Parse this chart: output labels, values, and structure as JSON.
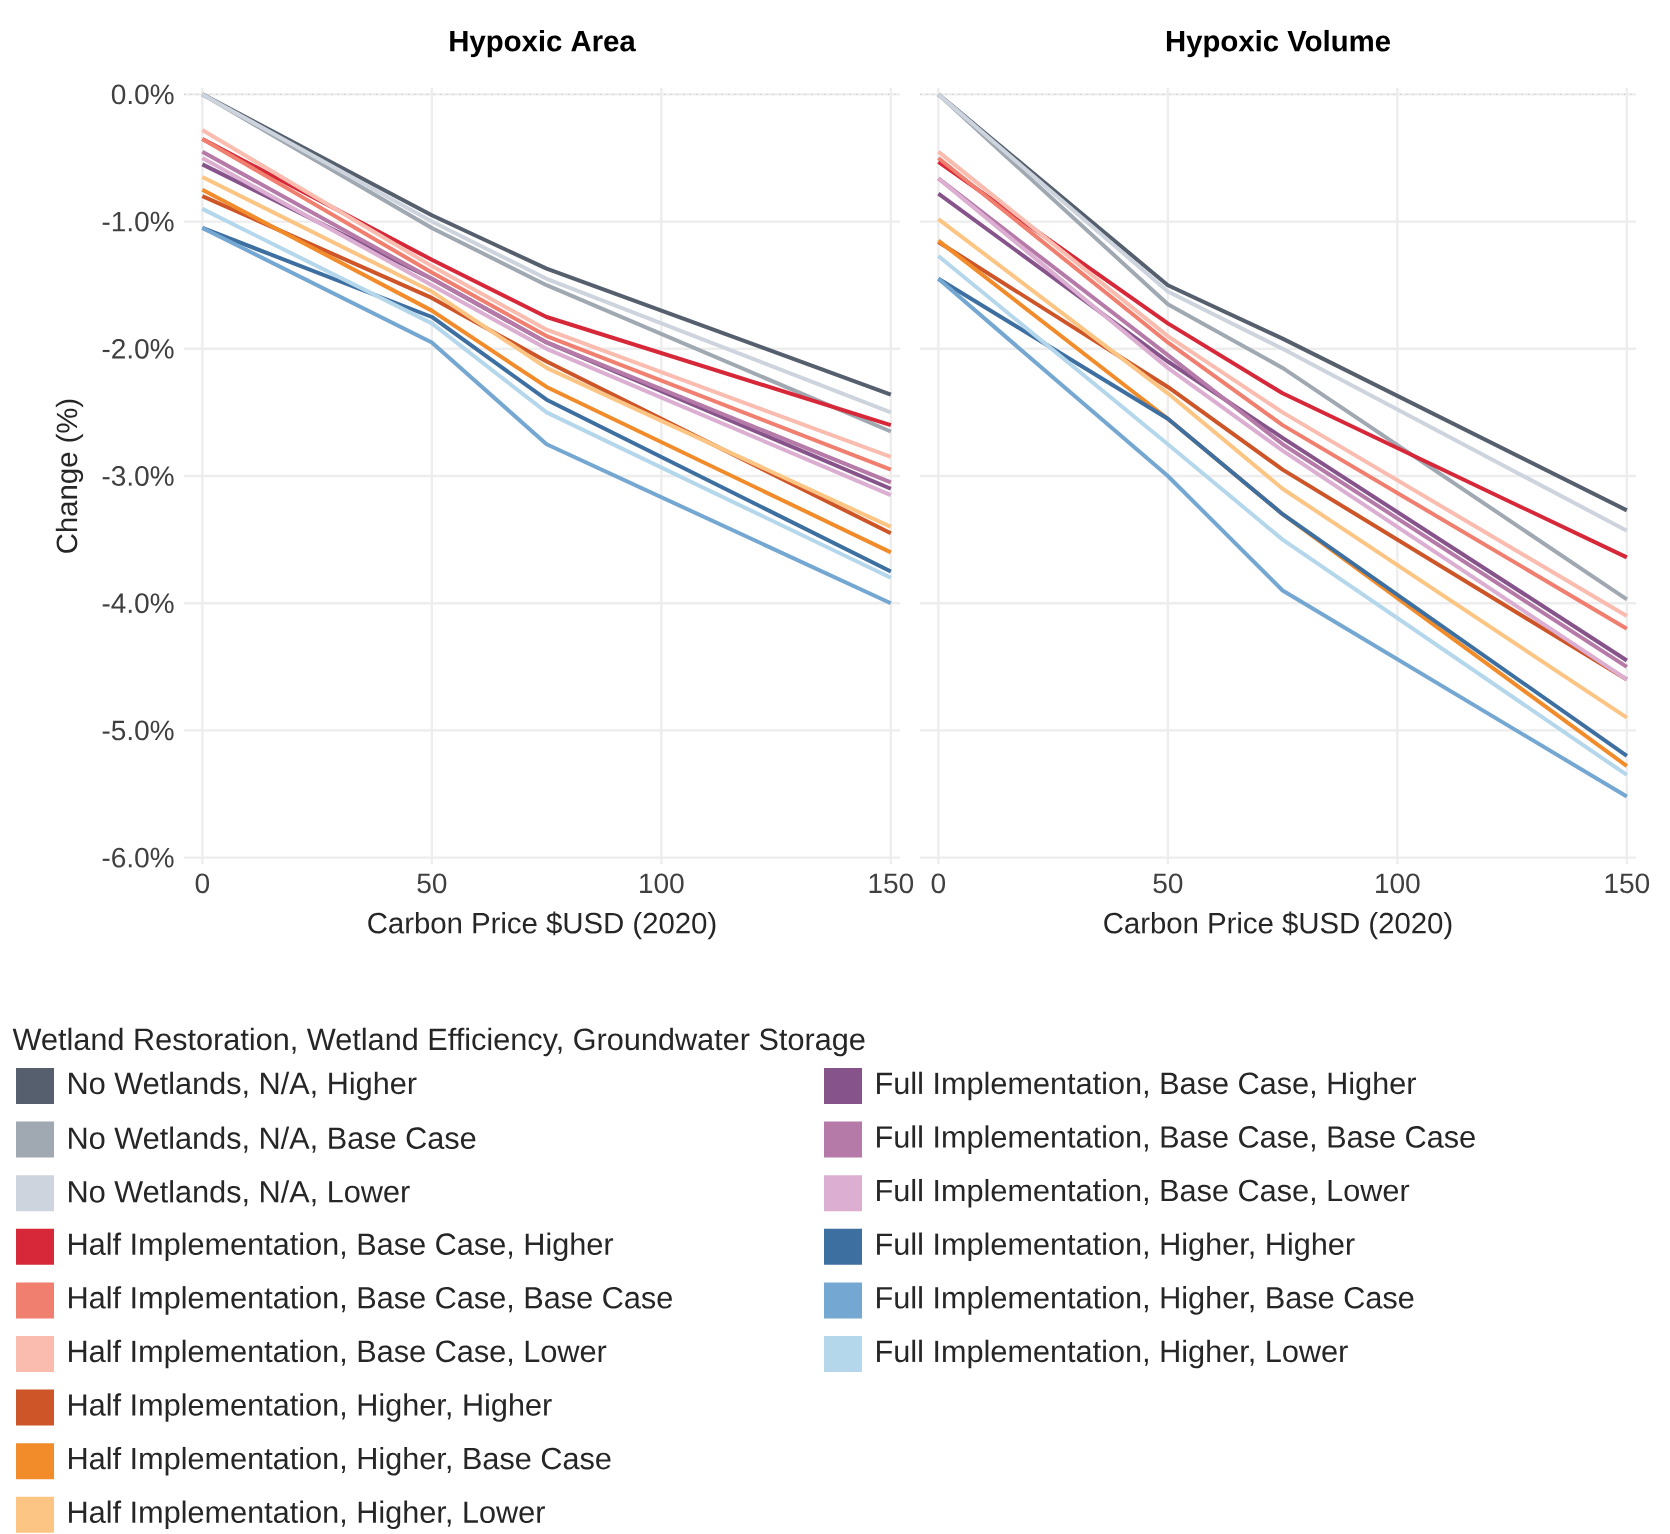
{
  "chart_data": [
    {
      "type": "line",
      "title": "Hypoxic Area",
      "xlabel": "Carbon Price $USD (2020)",
      "ylabel": "Change (%)",
      "legend_title": "Wetland Restoration, Wetland Efficiency, Groundwater Storage",
      "legend": "bottom",
      "grid": true,
      "marker": "none",
      "line_style": "solid",
      "x": [
        0,
        50,
        75,
        150
      ],
      "xlim": [
        -4,
        152
      ],
      "xticks": [
        0,
        50,
        100,
        150
      ],
      "ylim": [
        -6.05,
        0.05
      ],
      "yticks": [
        {
          "value": 0,
          "label": "0.0%"
        },
        {
          "value": -1,
          "label": "-1.0%"
        },
        {
          "value": -2,
          "label": "-2.0%"
        },
        {
          "value": -3,
          "label": "-3.0%"
        },
        {
          "value": -4,
          "label": "-4.0%"
        },
        {
          "value": -5,
          "label": "-5.0%"
        },
        {
          "value": -6,
          "label": "-6.0%"
        }
      ],
      "ref_lines": [
        {
          "axis": "y",
          "value": 0,
          "color": "#c8c8c8",
          "line_style": "dotted"
        }
      ],
      "series": [
        {
          "name": "No Wetlands, N/A, Higher",
          "color": "#555f6d",
          "values": [
            0,
            -0.95,
            -1.37,
            -2.36
          ]
        },
        {
          "name": "No Wetlands, N/A, Base Case",
          "color": "#a0a8b2",
          "values": [
            0,
            -1.05,
            -1.5,
            -2.65
          ]
        },
        {
          "name": "No Wetlands, N/A, Lower",
          "color": "#cdd4dd",
          "values": [
            0,
            -1.0,
            -1.45,
            -2.5
          ]
        },
        {
          "name": "Half Implementation, Base Case, Higher",
          "color": "#d62839",
          "values": [
            -0.35,
            -1.3,
            -1.75,
            -2.6
          ]
        },
        {
          "name": "Half Implementation, Base Case, Base Case",
          "color": "#f07f6f",
          "values": [
            -0.35,
            -1.4,
            -1.9,
            -2.95
          ]
        },
        {
          "name": "Half Implementation, Base Case, Lower",
          "color": "#fbbcb0",
          "values": [
            -0.28,
            -1.35,
            -1.85,
            -2.85
          ]
        },
        {
          "name": "Half Implementation, Higher, Higher",
          "color": "#cd5528",
          "values": [
            -0.8,
            -1.6,
            -2.1,
            -3.45
          ]
        },
        {
          "name": "Half Implementation, Higher, Base Case",
          "color": "#f28c2b",
          "values": [
            -0.75,
            -1.7,
            -2.3,
            -3.6
          ]
        },
        {
          "name": "Half Implementation, Higher, Lower",
          "color": "#fdc583",
          "values": [
            -0.65,
            -1.55,
            -2.15,
            -3.4
          ]
        },
        {
          "name": "Full Implementation, Base Case, Higher",
          "color": "#86548a",
          "values": [
            -0.55,
            -1.45,
            -1.95,
            -3.1
          ]
        },
        {
          "name": "Full Implementation, Base Case, Base Case",
          "color": "#b67aa8",
          "values": [
            -0.45,
            -1.45,
            -1.95,
            -3.05
          ]
        },
        {
          "name": "Full Implementation, Base Case, Lower",
          "color": "#dcaed1",
          "values": [
            -0.5,
            -1.5,
            -2.0,
            -3.15
          ]
        },
        {
          "name": "Full Implementation, Higher, Higher",
          "color": "#3d6fa0",
          "values": [
            -1.05,
            -1.75,
            -2.4,
            -3.75
          ]
        },
        {
          "name": "Full Implementation, Higher, Base Case",
          "color": "#74a7d1",
          "values": [
            -1.05,
            -1.95,
            -2.75,
            -4.0
          ]
        },
        {
          "name": "Full Implementation, Higher, Lower",
          "color": "#b5d7ec",
          "values": [
            -0.9,
            -1.8,
            -2.5,
            -3.8
          ]
        }
      ]
    },
    {
      "type": "line",
      "title": "Hypoxic Volume",
      "xlabel": "Carbon Price $USD (2020)",
      "grid": true,
      "marker": "none",
      "line_style": "solid",
      "tick_labels": "x",
      "x": [
        0,
        50,
        75,
        150
      ],
      "xlim": [
        -4,
        152
      ],
      "xticks": [
        0,
        50,
        100,
        150
      ],
      "ylim": [
        -6.05,
        0.05
      ],
      "yticks": [
        {
          "value": 0,
          "label": null
        },
        {
          "value": -1,
          "label": null
        },
        {
          "value": -2,
          "label": null
        },
        {
          "value": -3,
          "label": null
        },
        {
          "value": -4,
          "label": null
        },
        {
          "value": -5,
          "label": null
        },
        {
          "value": -6,
          "label": null
        }
      ],
      "ref_lines": [
        {
          "axis": "y",
          "value": 0,
          "color": "#c8c8c8",
          "line_style": "dotted"
        }
      ],
      "series": [
        {
          "color": "#555f6d",
          "values": [
            0,
            -1.5,
            -1.92,
            -3.27
          ]
        },
        {
          "color": "#a0a8b2",
          "values": [
            0,
            -1.65,
            -2.15,
            -3.97
          ]
        },
        {
          "color": "#cdd4dd",
          "values": [
            0,
            -1.55,
            -2.0,
            -3.43
          ]
        },
        {
          "color": "#d62839",
          "values": [
            -0.53,
            -1.8,
            -2.35,
            -3.64
          ]
        },
        {
          "color": "#f07f6f",
          "values": [
            -0.5,
            -1.95,
            -2.6,
            -4.2
          ]
        },
        {
          "color": "#fbbcb0",
          "values": [
            -0.45,
            -1.9,
            -2.5,
            -4.1
          ]
        },
        {
          "color": "#cd5528",
          "values": [
            -1.16,
            -2.3,
            -2.95,
            -4.6
          ]
        },
        {
          "color": "#f28c2b",
          "values": [
            -1.15,
            -2.55,
            -3.3,
            -5.28
          ]
        },
        {
          "color": "#fdc583",
          "values": [
            -0.98,
            -2.35,
            -3.1,
            -4.9
          ]
        },
        {
          "color": "#86548a",
          "values": [
            -0.78,
            -2.1,
            -2.7,
            -4.45
          ]
        },
        {
          "color": "#b67aa8",
          "values": [
            -0.66,
            -2.05,
            -2.75,
            -4.5
          ]
        },
        {
          "color": "#dcaed1",
          "values": [
            -0.66,
            -2.15,
            -2.8,
            -4.6
          ]
        },
        {
          "color": "#3d6fa0",
          "values": [
            -1.45,
            -2.55,
            -3.3,
            -5.2
          ]
        },
        {
          "color": "#74a7d1",
          "values": [
            -1.45,
            -3.0,
            -3.9,
            -5.52
          ]
        },
        {
          "color": "#b5d7ec",
          "values": [
            -1.27,
            -2.75,
            -3.5,
            -5.35
          ]
        }
      ]
    }
  ]
}
